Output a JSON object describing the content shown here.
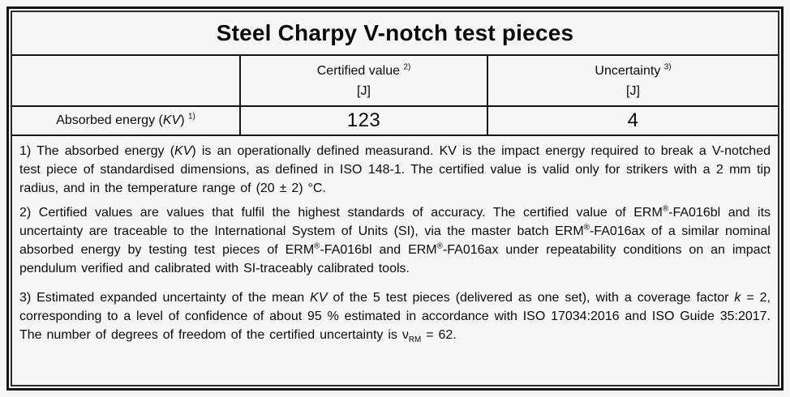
{
  "colors": {
    "background": "#f6f6f6",
    "ink": "#0b0b0b",
    "border": "#141414"
  },
  "table": {
    "title": "Steel Charpy V-notch test pieces",
    "header": {
      "certified_value": {
        "label": [
          {
            "t": "Certified value "
          },
          {
            "t": "2)",
            "s": "sup"
          }
        ],
        "unit": "[J]"
      },
      "uncertainty": {
        "label": [
          {
            "t": "Uncertainty "
          },
          {
            "t": "3)",
            "s": "sup"
          }
        ],
        "unit": "[J]"
      }
    },
    "row": {
      "label": [
        {
          "t": "Absorbed energy ("
        },
        {
          "t": "KV",
          "s": "i"
        },
        {
          "t": ") "
        },
        {
          "t": "1)",
          "s": "sup"
        }
      ],
      "certified_value": "123",
      "uncertainty": "4"
    }
  },
  "footnotes": [
    [
      {
        "t": "1) The absorbed energy ("
      },
      {
        "t": "KV",
        "s": "i"
      },
      {
        "t": ") is an operationally defined measurand. KV is the impact energy required to break a V-notched test piece of standardised dimensions, as defined in ISO 148-1. The certified value is valid only for strikers with a 2 mm tip radius, and in the temperature range of (20 ± 2) °C."
      }
    ],
    [
      {
        "t": "2) Certified values are values that fulfil the highest standards of accuracy. The certified value of ERM"
      },
      {
        "t": "®",
        "s": "sup"
      },
      {
        "t": "-FA016bl and its uncertainty are traceable to the International System of Units (SI), via the master batch ERM"
      },
      {
        "t": "®",
        "s": "sup"
      },
      {
        "t": "-FA016ax of a similar nominal absorbed energy by testing test pieces of ERM"
      },
      {
        "t": "®",
        "s": "sup"
      },
      {
        "t": "-FA016bl and ERM"
      },
      {
        "t": "®",
        "s": "sup"
      },
      {
        "t": "-FA016ax under repeatability conditions on an impact pendulum verified and calibrated with SI-traceably calibrated tools."
      }
    ],
    [
      {
        "t": "3) Estimated expanded uncertainty of the mean "
      },
      {
        "t": "KV",
        "s": "i"
      },
      {
        "t": " of the 5 test pieces (delivered as one set), with a coverage factor "
      },
      {
        "t": "k",
        "s": "i"
      },
      {
        "t": " = 2, corresponding to a level of confidence of about 95 % estimated in accordance with ISO 17034:2016 and ISO Guide 35:2017. The number of degrees of freedom of the certified uncertainty is "
      },
      {
        "t": "ν"
      },
      {
        "t": "RM",
        "s": "sub"
      },
      {
        "t": " = 62."
      }
    ]
  ]
}
